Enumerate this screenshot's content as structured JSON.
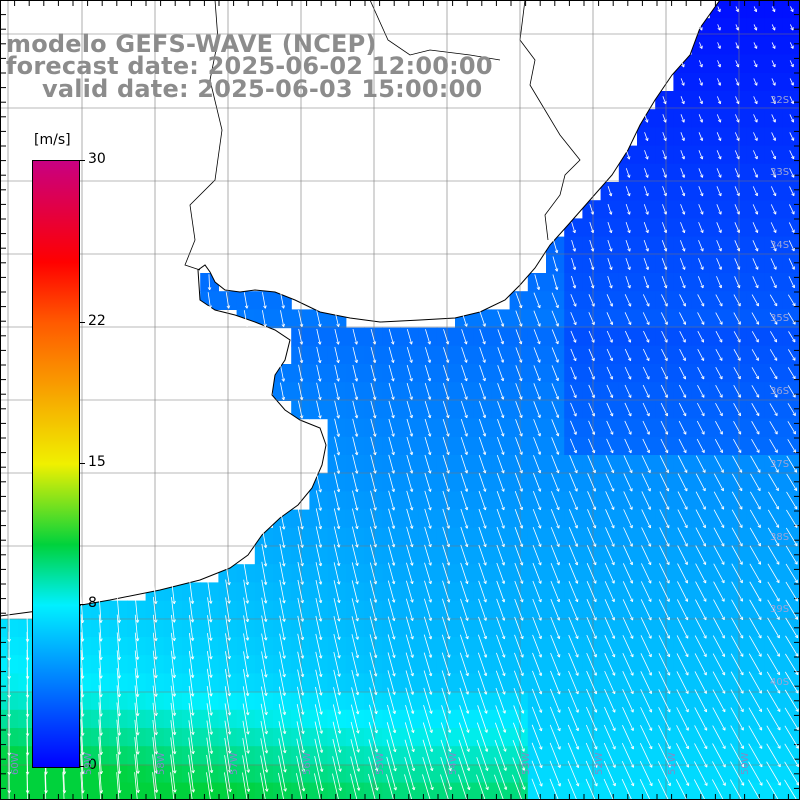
{
  "header": {
    "model": "modelo GEFS-WAVE (NCEP)",
    "forecast": "forecast date: 2025-06-02 12:00:00",
    "valid": "valid date: 2025-06-03 15:00:00"
  },
  "colorbar": {
    "units": "[m/s]",
    "ticks": [
      {
        "label": "30",
        "value": 30
      },
      {
        "label": "22",
        "value": 22
      },
      {
        "label": "15",
        "value": 15
      },
      {
        "label": "8",
        "value": 8
      },
      {
        "label": "0",
        "value": 0
      }
    ]
  },
  "lat_labels": [
    "32S",
    "33S",
    "34S",
    "35S",
    "36S",
    "37S",
    "38S",
    "39S",
    "40S"
  ],
  "lon_labels": [
    "60W",
    "59W",
    "58W",
    "57W",
    "56W",
    "55W",
    "54W",
    "53W",
    "52W",
    "51W",
    "50W"
  ]
}
